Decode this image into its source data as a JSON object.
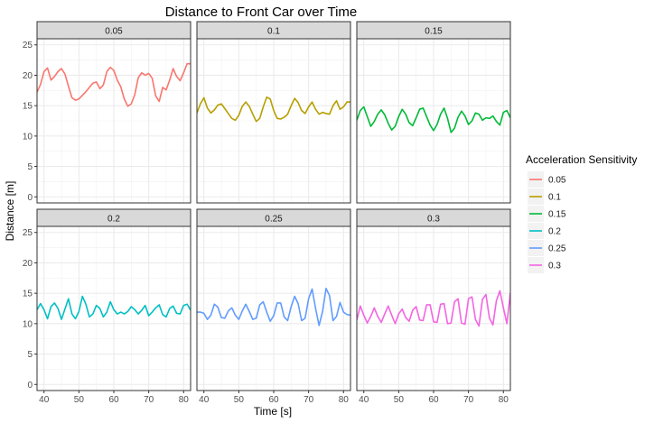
{
  "chart_data": {
    "type": "line",
    "title": "Distance to Front Car over Time",
    "xlabel": "Time [s]",
    "ylabel": "Distance [m]",
    "xlim": [
      38,
      82
    ],
    "ylim": [
      -1,
      26
    ],
    "x_ticks": [
      40,
      50,
      60,
      70,
      80
    ],
    "y_ticks": [
      0,
      5,
      10,
      15,
      20,
      25
    ],
    "grid": true,
    "facet_by": "Acceleration Sensitivity",
    "legend": {
      "title": "Acceleration Sensitivity",
      "position": "right"
    },
    "series": [
      {
        "name": "0.05",
        "color": "#F8766D",
        "x": [
          38,
          39,
          40,
          41,
          42,
          43,
          44,
          45,
          46,
          47,
          48,
          49,
          50,
          51,
          52,
          53,
          54,
          55,
          56,
          57,
          58,
          59,
          60,
          61,
          62,
          63,
          64,
          65,
          66,
          67,
          68,
          69,
          70,
          71,
          72,
          73,
          74,
          75,
          76,
          77,
          78,
          79,
          80,
          81,
          82
        ],
        "y": [
          17.2,
          18.5,
          20.6,
          21.2,
          19.2,
          19.8,
          20.6,
          21.1,
          20.2,
          18.2,
          16.3,
          15.9,
          16.1,
          16.7,
          17.3,
          18.0,
          18.7,
          18.9,
          17.8,
          18.4,
          20.6,
          21.3,
          20.8,
          19.2,
          18.1,
          16.1,
          14.9,
          15.3,
          16.8,
          19.6,
          20.4,
          20.0,
          20.3,
          19.5,
          16.6,
          15.7,
          18.0,
          17.6,
          19.2,
          21.1,
          19.8,
          19.1,
          20.4,
          21.9,
          21.9
        ]
      },
      {
        "name": "0.1",
        "color": "#B79F00",
        "x": [
          38,
          39,
          40,
          41,
          42,
          43,
          44,
          45,
          46,
          47,
          48,
          49,
          50,
          51,
          52,
          53,
          54,
          55,
          56,
          57,
          58,
          59,
          60,
          61,
          62,
          63,
          64,
          65,
          66,
          67,
          68,
          69,
          70,
          71,
          72,
          73,
          74,
          75,
          76,
          77,
          78,
          79,
          80,
          81,
          82
        ],
        "y": [
          13.8,
          15.3,
          16.3,
          14.6,
          13.8,
          14.3,
          15.1,
          15.3,
          14.5,
          13.7,
          12.9,
          12.6,
          13.4,
          14.9,
          15.6,
          14.9,
          13.6,
          12.4,
          12.9,
          14.8,
          16.4,
          16.1,
          14.2,
          12.9,
          12.8,
          13.1,
          13.6,
          15.0,
          16.2,
          15.5,
          14.2,
          13.7,
          14.8,
          15.6,
          14.4,
          13.6,
          13.9,
          13.7,
          13.6,
          15.0,
          15.8,
          14.4,
          14.8,
          15.6,
          15.6
        ]
      },
      {
        "name": "0.15",
        "color": "#00BA38",
        "x": [
          38,
          39,
          40,
          41,
          42,
          43,
          44,
          45,
          46,
          47,
          48,
          49,
          50,
          51,
          52,
          53,
          54,
          55,
          56,
          57,
          58,
          59,
          60,
          61,
          62,
          63,
          64,
          65,
          66,
          67,
          68,
          69,
          70,
          71,
          72,
          73,
          74,
          75,
          76,
          77,
          78,
          79,
          80,
          81,
          82
        ],
        "y": [
          12.6,
          14.2,
          14.8,
          13.2,
          11.6,
          12.4,
          13.6,
          14.3,
          13.5,
          12.1,
          11.0,
          11.6,
          13.2,
          14.4,
          13.6,
          12.2,
          11.7,
          13.0,
          14.4,
          14.6,
          13.2,
          11.8,
          10.9,
          11.9,
          13.6,
          14.6,
          12.9,
          10.6,
          11.3,
          13.1,
          14.1,
          13.3,
          11.9,
          12.5,
          13.8,
          13.6,
          12.6,
          13.0,
          12.9,
          13.3,
          12.4,
          11.8,
          13.9,
          14.2,
          13.0
        ]
      },
      {
        "name": "0.2",
        "color": "#00BFC4",
        "x": [
          38,
          39,
          40,
          41,
          42,
          43,
          44,
          45,
          46,
          47,
          48,
          49,
          50,
          51,
          52,
          53,
          54,
          55,
          56,
          57,
          58,
          59,
          60,
          61,
          62,
          63,
          64,
          65,
          66,
          67,
          68,
          69,
          70,
          71,
          72,
          73,
          74,
          75,
          76,
          77,
          78,
          79,
          80,
          81,
          82
        ],
        "y": [
          12.3,
          13.3,
          12.3,
          10.8,
          12.8,
          13.4,
          12.5,
          10.7,
          12.4,
          14.1,
          11.6,
          10.8,
          12.0,
          14.5,
          13.2,
          11.1,
          11.6,
          13.0,
          12.5,
          11.1,
          11.9,
          13.6,
          12.3,
          11.6,
          11.9,
          11.6,
          12.0,
          12.8,
          12.3,
          11.6,
          12.2,
          13.0,
          11.3,
          11.9,
          12.6,
          13.1,
          11.5,
          11.1,
          12.5,
          12.9,
          11.7,
          11.6,
          13.0,
          13.2,
          12.2
        ]
      },
      {
        "name": "0.25",
        "color": "#619CFF",
        "x": [
          38,
          39,
          40,
          41,
          42,
          43,
          44,
          45,
          46,
          47,
          48,
          49,
          50,
          51,
          52,
          53,
          54,
          55,
          56,
          57,
          58,
          59,
          60,
          61,
          62,
          63,
          64,
          65,
          66,
          67,
          68,
          69,
          70,
          71,
          72,
          73,
          74,
          75,
          76,
          77,
          78,
          79,
          80,
          81,
          82
        ],
        "y": [
          11.9,
          11.9,
          11.7,
          10.7,
          11.4,
          13.2,
          12.7,
          11.0,
          10.9,
          12.1,
          12.6,
          11.4,
          10.7,
          12.1,
          13.2,
          12.0,
          10.7,
          10.9,
          13.1,
          13.6,
          11.9,
          10.4,
          11.3,
          13.4,
          13.4,
          11.1,
          10.5,
          12.8,
          14.5,
          13.3,
          10.5,
          10.9,
          14.1,
          15.7,
          12.5,
          9.7,
          12.0,
          15.8,
          14.6,
          10.5,
          11.2,
          13.5,
          11.9,
          11.5,
          11.4
        ]
      },
      {
        "name": "0.3",
        "color": "#F564E3",
        "x": [
          38,
          39,
          40,
          41,
          42,
          43,
          44,
          45,
          46,
          47,
          48,
          49,
          50,
          51,
          52,
          53,
          54,
          55,
          56,
          57,
          58,
          59,
          60,
          61,
          62,
          63,
          64,
          65,
          66,
          67,
          68,
          69,
          70,
          71,
          72,
          73,
          74,
          75,
          76,
          77,
          78,
          79,
          80,
          81,
          82
        ],
        "y": [
          10.6,
          12.9,
          11.4,
          10.1,
          11.2,
          12.6,
          11.2,
          10.2,
          11.6,
          12.9,
          11.4,
          10.0,
          11.6,
          12.4,
          11.0,
          10.4,
          12.2,
          12.8,
          10.6,
          10.5,
          13.1,
          13.1,
          10.3,
          10.2,
          13.2,
          13.3,
          10.0,
          10.1,
          13.6,
          14.1,
          10.1,
          9.9,
          14.1,
          14.4,
          10.7,
          9.6,
          14.0,
          14.8,
          10.9,
          9.8,
          13.8,
          15.4,
          12.6,
          10.0,
          15.1
        ]
      }
    ]
  }
}
